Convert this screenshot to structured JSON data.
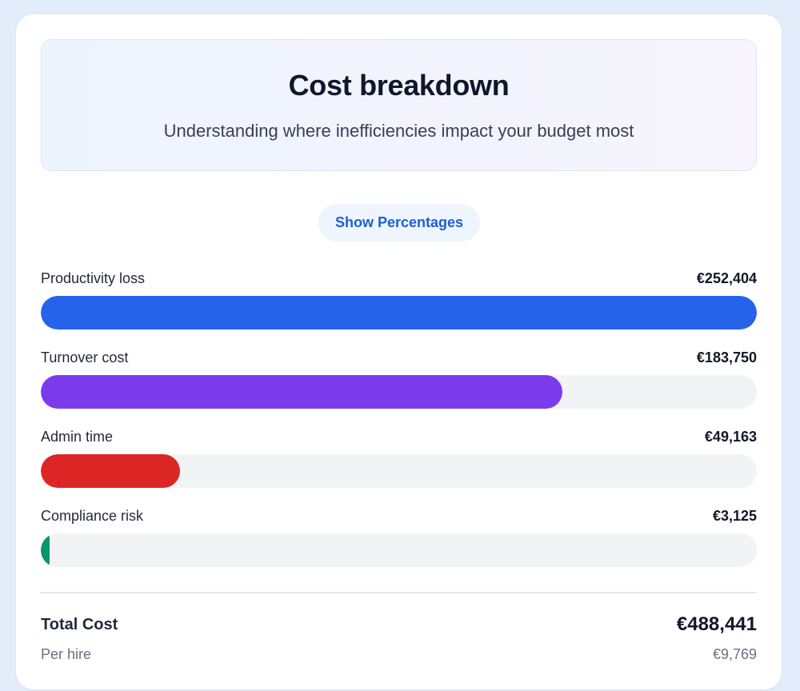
{
  "header": {
    "title": "Cost breakdown",
    "subtitle": "Understanding where inefficiencies impact your budget most"
  },
  "toggle": {
    "label": "Show Percentages"
  },
  "breakdown": {
    "max_value": 252404,
    "items": [
      {
        "label": "Productivity loss",
        "value_text": "€252,404",
        "value": 252404,
        "color": "#2563eb"
      },
      {
        "label": "Turnover cost",
        "value_text": "€183,750",
        "value": 183750,
        "color": "#7c3aed"
      },
      {
        "label": "Admin time",
        "value_text": "€49,163",
        "value": 49163,
        "color": "#dc2626"
      },
      {
        "label": "Compliance risk",
        "value_text": "€3,125",
        "value": 3125,
        "color": "#059669"
      }
    ]
  },
  "summary": {
    "total_label": "Total Cost",
    "total_value": "€488,441",
    "per_hire_label": "Per hire",
    "per_hire_value": "€9,769"
  }
}
